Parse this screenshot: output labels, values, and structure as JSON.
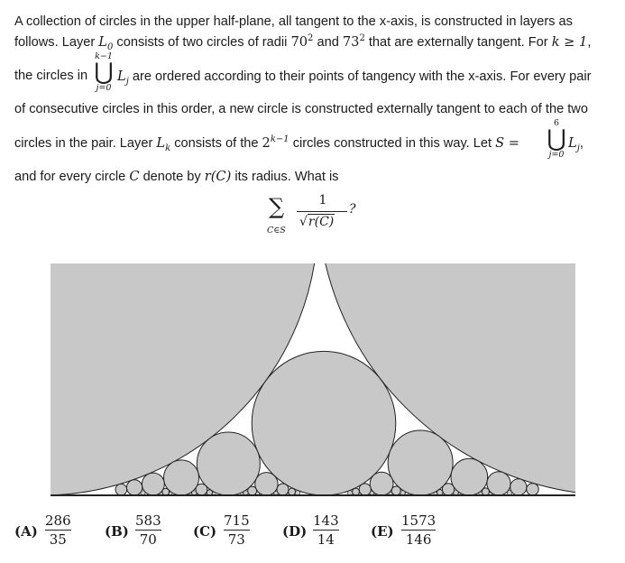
{
  "problem": {
    "line1": "A collection of circles in the upper half-plane, all tangent to the x-axis, is constructed in layers as",
    "line2_a": "follows. Layer ",
    "line2_b": " consists of two circles of radii ",
    "line2_c": " and ",
    "line2_d": " that are externally tangent. For ",
    "line2_e": ",",
    "L0": "L",
    "L0_sub": "0",
    "r1": "70",
    "r2": "73",
    "sq": "2",
    "kcond": "k ≥ 1",
    "line3_a": "the circles in",
    "union1_upper": "k−1",
    "union1_lower": "j=0",
    "line3_b": "L",
    "line3_sub": "j",
    "line3_c": "are ordered according to their points of tangency with the x-axis. For every pair",
    "line4": "of consecutive circles in this order, a new circle is constructed externally tangent to each of the two",
    "line5_a": "circles in the pair. Layer ",
    "line5_Lk": "L",
    "line5_sub": "k",
    "line5_b": " consists of the ",
    "line5_pow": "2",
    "line5_exp": "k−1",
    "line5_c": " circles constructed in this way. Let ",
    "line5_S": "S =",
    "union2_upper": "6",
    "union2_lower": "j=0",
    "line5_L": "L",
    "line5_Lsub": "j",
    "line5_end": ",",
    "line6_a": "and for every circle ",
    "line6_C": "C",
    "line6_b": " denote by ",
    "line6_r": "r(C)",
    "line6_c": " its radius. What is",
    "sum_sym": "∑",
    "sum_lower": "C∈S",
    "sum_num": "1",
    "sum_den_inner": "r(C)",
    "sum_q": "?"
  },
  "figure": {
    "fill_color": "#c8c8c8",
    "line_color": "#222222"
  },
  "options": [
    {
      "label": "(A)",
      "num": "286",
      "den": "35"
    },
    {
      "label": "(B)",
      "num": "583",
      "den": "70"
    },
    {
      "label": "(C)",
      "num": "715",
      "den": "73"
    },
    {
      "label": "(D)",
      "num": "143",
      "den": "14"
    },
    {
      "label": "(E)",
      "num": "1573",
      "den": "146"
    }
  ]
}
